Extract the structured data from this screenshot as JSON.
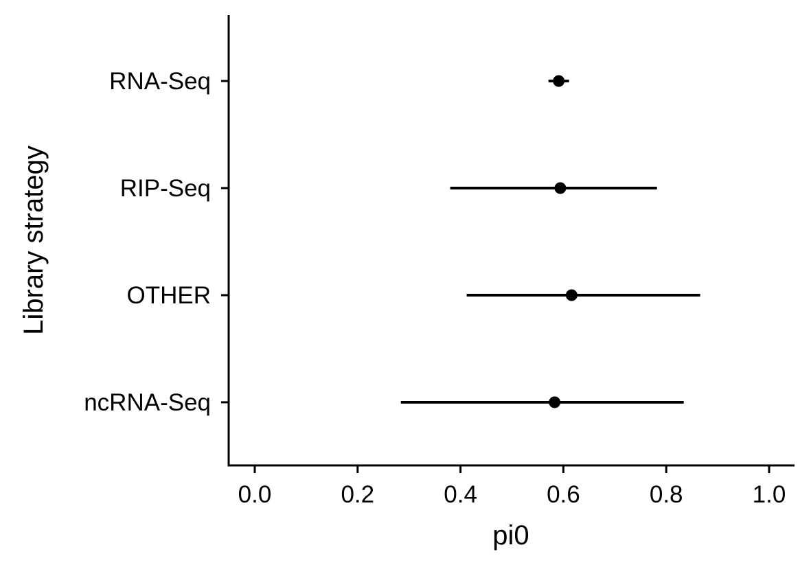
{
  "chart_data": {
    "type": "scatter",
    "subtype": "point-range",
    "title": "",
    "xlabel": "pi0",
    "ylabel": "Library strategy",
    "xlim": [
      -0.05,
      1.05
    ],
    "xticks": [
      0.0,
      0.2,
      0.4,
      0.6,
      0.8,
      1.0
    ],
    "xtick_labels": [
      "0.0",
      "0.2",
      "0.4",
      "0.6",
      "0.8",
      "1.0"
    ],
    "grid": false,
    "legend": "none",
    "categories": [
      "RNA-Seq",
      "RIP-Seq",
      "OTHER",
      "ncRNA-Seq"
    ],
    "series": [
      {
        "points": [
          {
            "category": "RNA-Seq",
            "estimate": 0.591,
            "low": 0.571,
            "high": 0.611
          },
          {
            "category": "RIP-Seq",
            "estimate": 0.594,
            "low": 0.38,
            "high": 0.782
          },
          {
            "category": "OTHER",
            "estimate": 0.616,
            "low": 0.412,
            "high": 0.866
          },
          {
            "category": "ncRNA-Seq",
            "estimate": 0.583,
            "low": 0.284,
            "high": 0.834
          }
        ]
      }
    ],
    "colors": {
      "marks": "#000000",
      "axes": "#000000",
      "background": "#ffffff"
    }
  }
}
